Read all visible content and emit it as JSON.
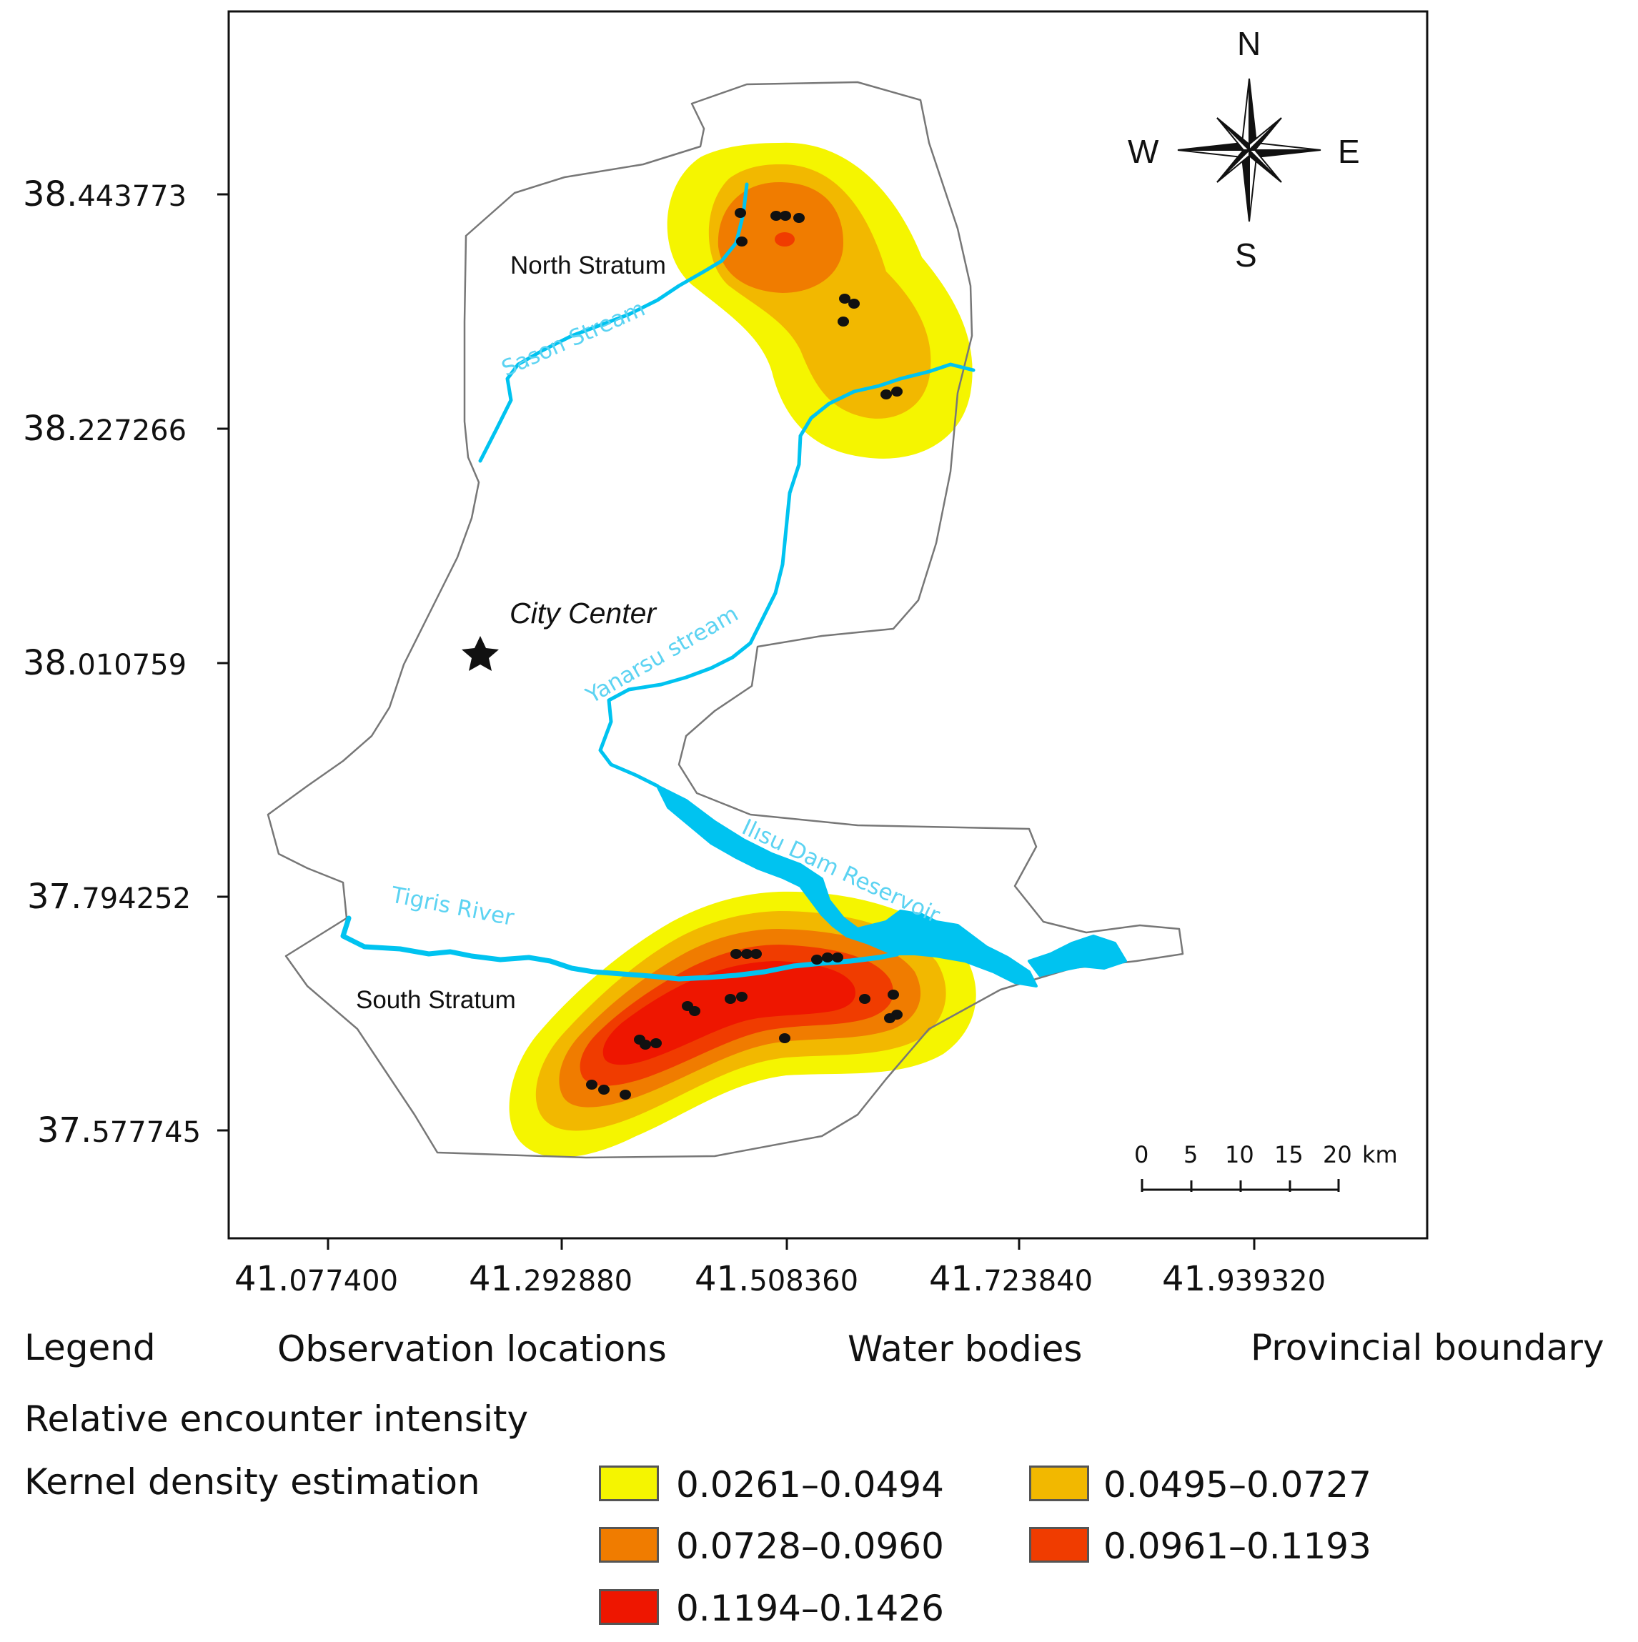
{
  "axes": {
    "y_ticks": [
      {
        "int": "38.",
        "dec": "443773"
      },
      {
        "int": "38.",
        "dec": "227266"
      },
      {
        "int": "38.",
        "dec": "010759"
      },
      {
        "int": "37.",
        "dec": "794252"
      },
      {
        "int": "37.",
        "dec": "577745"
      }
    ],
    "x_ticks": [
      {
        "int": "41.",
        "dec": "077400"
      },
      {
        "int": "41.",
        "dec": "292880"
      },
      {
        "int": "41.",
        "dec": "508360"
      },
      {
        "int": "41.",
        "dec": "723840"
      },
      {
        "int": "41.",
        "dec": "939320"
      }
    ]
  },
  "map_labels": {
    "north_stratum": "North Stratum",
    "south_stratum": "South Stratum",
    "city_center": "City Center",
    "sason_stream": "Sason Stream",
    "yanarsu_stream": "Yanarsu stream",
    "ilisu_dam": "Ilısu Dam Reservoir",
    "tigris_river": "Tigris River"
  },
  "compass": {
    "n": "N",
    "s": "S",
    "e": "E",
    "w": "W"
  },
  "scale_bar": {
    "ticks": [
      "0",
      "5",
      "10",
      "15",
      "20"
    ],
    "unit": "km"
  },
  "legend": {
    "title": "Legend",
    "observation": "Observation locations",
    "water": "Water bodies",
    "boundary": "Provincial boundary",
    "intensity_title": "Relative encounter intensity",
    "kde_title": "Kernel density estimation",
    "classes": [
      {
        "range": "0.0261–0.0494",
        "color": "#f5f500"
      },
      {
        "range": "0.0495–0.0727",
        "color": "#f2b800"
      },
      {
        "range": "0.0728–0.0960",
        "color": "#f07c00"
      },
      {
        "range": "0.0961–0.1193",
        "color": "#f03c00"
      },
      {
        "range": "0.1194–0.1426",
        "color": "#ee1600"
      }
    ]
  },
  "colors": {
    "water": "#00c3f0",
    "boundary": "#777777",
    "point": "#111111"
  }
}
